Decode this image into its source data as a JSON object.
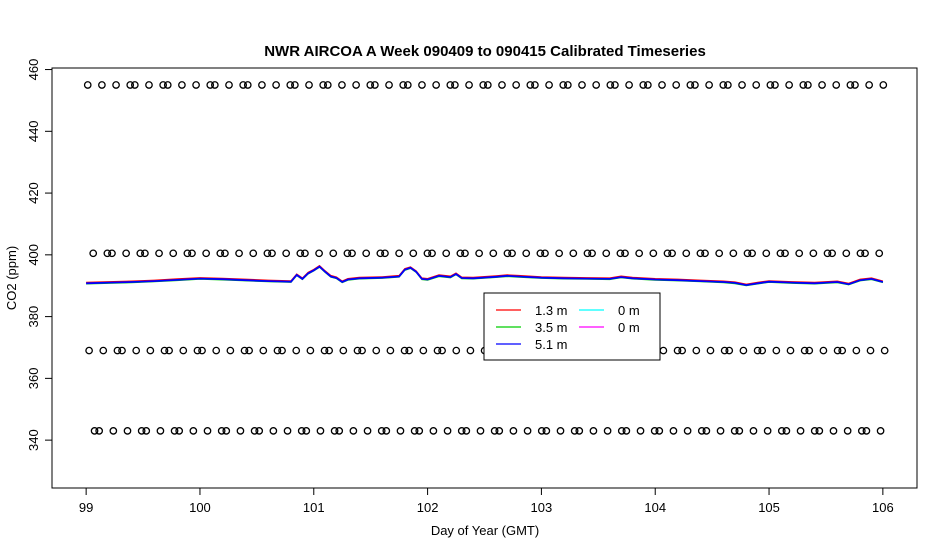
{
  "chart_data": {
    "type": "line",
    "title": "NWR AIRCOA A  Week 090409 to 090415  Calibrated Timeseries",
    "xlabel": "Day of Year (GMT)",
    "ylabel": "CO2 (ppm)",
    "xlim": [
      98.7,
      106.3
    ],
    "ylim": [
      324.5,
      460.5
    ],
    "xticks": [
      99,
      100,
      101,
      102,
      103,
      104,
      105,
      106
    ],
    "yticks": [
      340,
      360,
      380,
      400,
      420,
      440,
      460
    ],
    "grid": false,
    "legend_position": "center",
    "series": [
      {
        "name": "1.3 m",
        "color": "#ff0000",
        "style": "line"
      },
      {
        "name": "3.5 m",
        "color": "#00cd00",
        "style": "line"
      },
      {
        "name": "5.1 m",
        "color": "#0000ff",
        "style": "line"
      },
      {
        "name": "0 m",
        "color": "#00ffff",
        "style": "line"
      },
      {
        "name": "0 m",
        "color": "#ff00ff",
        "style": "line"
      }
    ],
    "co2_trace": {
      "x": [
        99.0,
        99.2,
        99.4,
        99.6,
        99.8,
        100.0,
        100.2,
        100.4,
        100.6,
        100.8,
        100.85,
        100.9,
        100.95,
        101.0,
        101.05,
        101.1,
        101.15,
        101.2,
        101.25,
        101.3,
        101.4,
        101.6,
        101.75,
        101.8,
        101.85,
        101.9,
        101.95,
        102.0,
        102.1,
        102.2,
        102.25,
        102.3,
        102.4,
        102.6,
        102.7,
        102.8,
        103.0,
        103.2,
        103.4,
        103.6,
        103.7,
        103.8,
        104.0,
        104.2,
        104.4,
        104.6,
        104.7,
        104.8,
        104.9,
        105.0,
        105.2,
        105.4,
        105.5,
        105.6,
        105.7,
        105.8,
        105.9,
        106.0
      ],
      "y": [
        390.8,
        391.0,
        391.2,
        391.5,
        391.9,
        392.3,
        392.1,
        391.8,
        391.5,
        391.3,
        393.5,
        392.2,
        394.0,
        395.0,
        396.2,
        394.5,
        393.0,
        392.5,
        391.2,
        392.0,
        392.4,
        392.6,
        393.0,
        395.2,
        395.8,
        394.5,
        392.2,
        392.0,
        393.2,
        392.8,
        393.8,
        392.5,
        392.4,
        392.9,
        393.2,
        393.0,
        392.6,
        392.4,
        392.3,
        392.2,
        392.8,
        392.4,
        392.0,
        391.8,
        391.5,
        391.2,
        390.9,
        390.2,
        390.8,
        391.3,
        391.0,
        390.8,
        391.0,
        391.2,
        390.5,
        391.8,
        392.2,
        391.2
      ]
    },
    "calibration_points": {
      "levels": [
        455,
        400.5,
        369,
        343
      ],
      "x_start": 99.05,
      "x_end": 105.98,
      "count": 70
    }
  }
}
